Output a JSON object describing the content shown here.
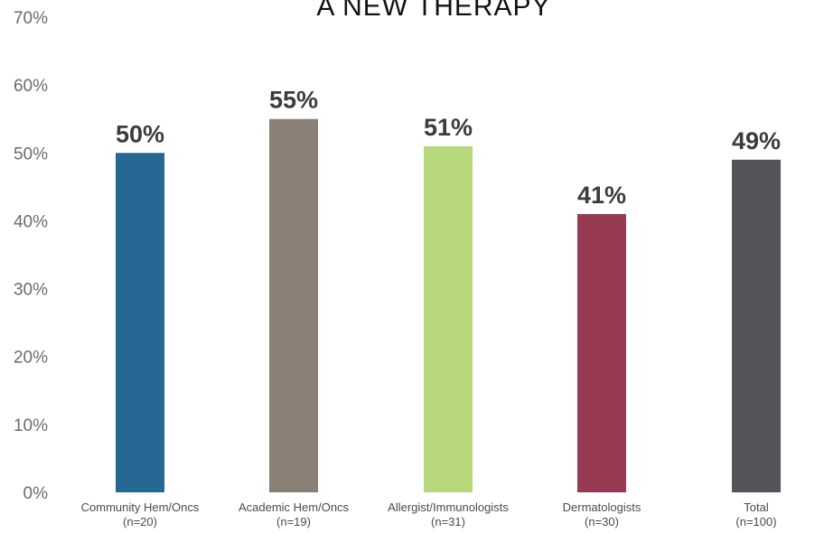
{
  "chart_data": {
    "type": "bar",
    "title": "A NEW THERAPY",
    "xlabel": "",
    "ylabel": "",
    "ylim": [
      0,
      70
    ],
    "y_ticks": [
      "0%",
      "10%",
      "20%",
      "30%",
      "40%",
      "50%",
      "60%",
      "70%"
    ],
    "categories": [
      [
        "Community Hem/Oncs",
        "(n=20)"
      ],
      [
        "Academic Hem/Oncs",
        "(n=19)"
      ],
      [
        "Allergist/Immunologists",
        "(n=31)"
      ],
      [
        "Dermatologists",
        "(n=30)"
      ],
      [
        "Total",
        "(n=100)"
      ]
    ],
    "values": [
      50,
      55,
      51,
      41,
      49
    ],
    "data_labels": [
      "50%",
      "55%",
      "51%",
      "41%",
      "49%"
    ],
    "colors": [
      "#266893",
      "#8a8075",
      "#b7d77c",
      "#953a51",
      "#54545a"
    ],
    "grid": false,
    "legend": "none"
  }
}
